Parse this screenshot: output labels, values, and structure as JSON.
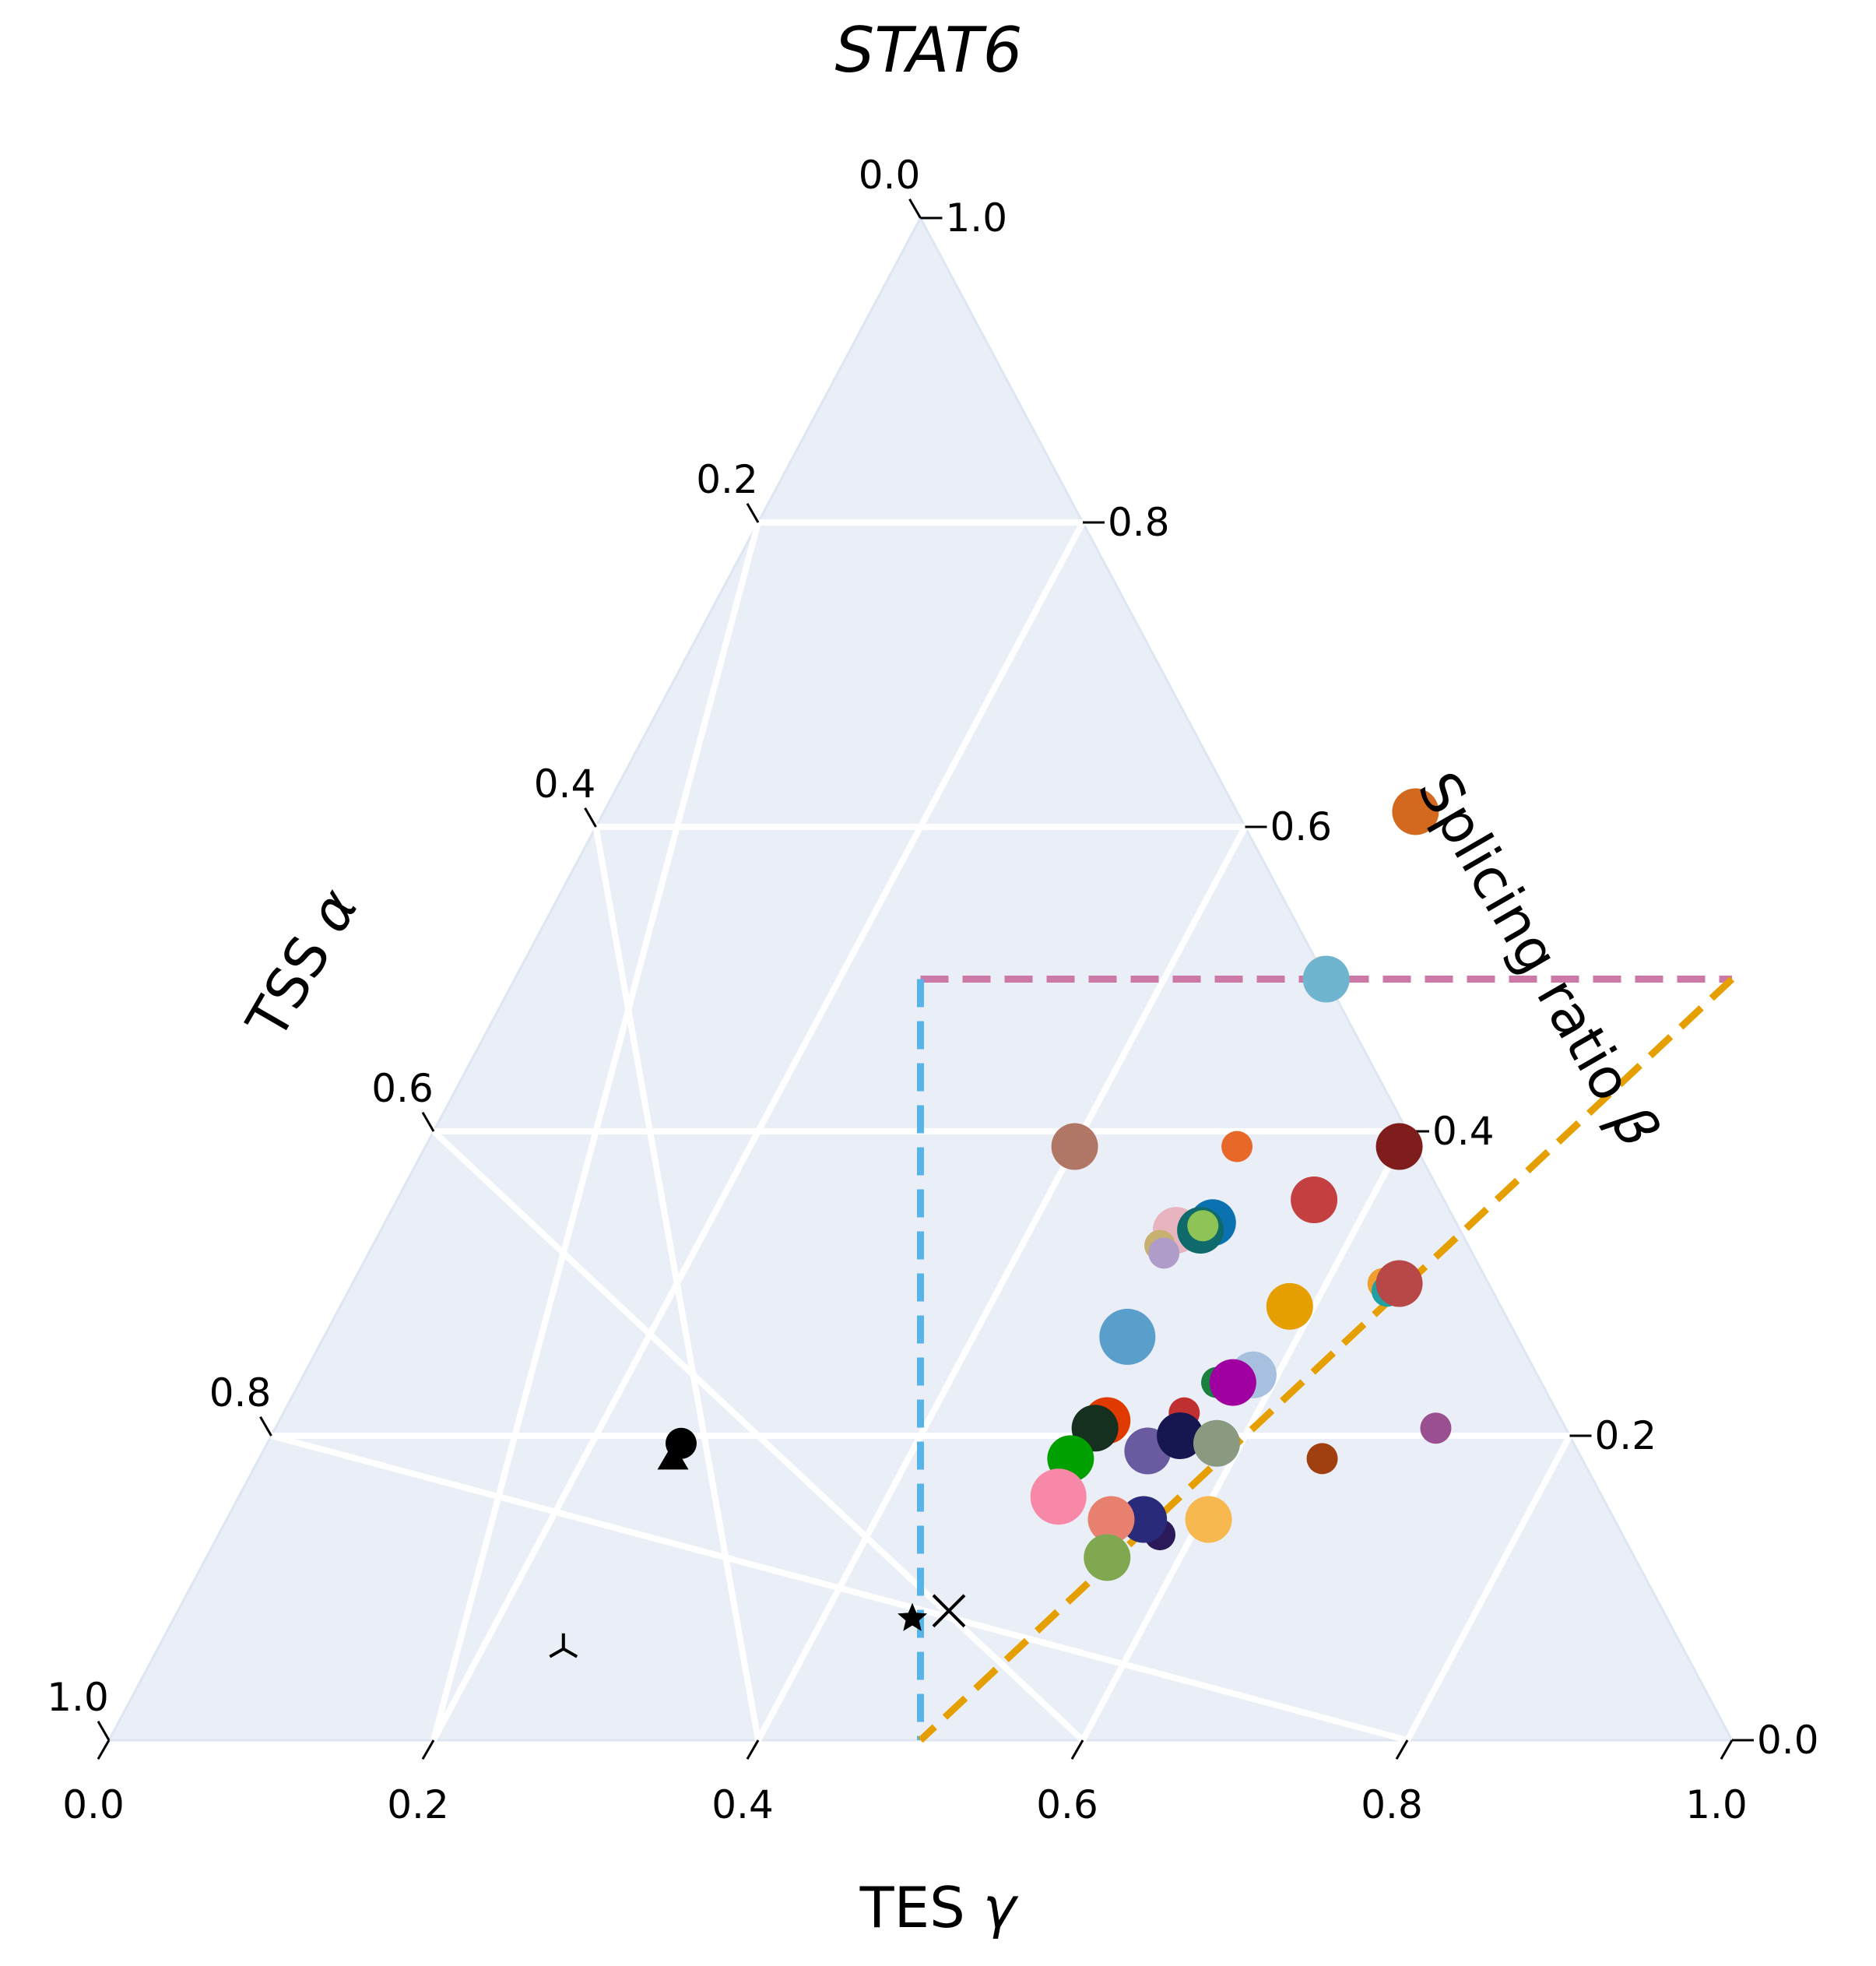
{
  "chart_data": {
    "type": "scatter",
    "subtype": "ternary",
    "title": "STAT6",
    "axes": {
      "bottom": {
        "label": "TES",
        "symbol": "γ",
        "ticks": [
          "0.0",
          "0.2",
          "0.4",
          "0.6",
          "0.8",
          "1.0"
        ]
      },
      "left": {
        "label": "TSS",
        "symbol": "α",
        "ticks": [
          "0.0",
          "0.2",
          "0.4",
          "0.6",
          "0.8",
          "1.0"
        ]
      },
      "right": {
        "label": "Splicing ratio",
        "symbol": "β",
        "ticks": [
          "0.0",
          "0.2",
          "0.4",
          "0.6",
          "0.8",
          "1.0"
        ]
      }
    },
    "grid": true,
    "background_color": "#eaeff7",
    "grid_color": "#ffffff",
    "reference_lines": [
      {
        "name": "beta-threshold",
        "color": "#cc79a7",
        "from": {
          "gamma": 0.25,
          "beta": 0.5
        },
        "to": {
          "gamma": 0.75,
          "beta": 0.5
        }
      },
      {
        "name": "alpha-threshold",
        "color": "#56b4e9",
        "from": {
          "gamma": 0.25,
          "beta": 0.5
        },
        "to": {
          "gamma": 0.5,
          "beta": 0.0
        }
      },
      {
        "name": "gamma-threshold",
        "color": "#e69f00",
        "from": {
          "gamma": 0.75,
          "beta": 0.5
        },
        "to": {
          "gamma": 0.5,
          "beta": 0.0
        }
      }
    ],
    "points": [
      {
        "gamma": 0.255,
        "beta": 0.195,
        "marker": "circle",
        "color": "#000000",
        "size": "small"
      },
      {
        "gamma": 0.255,
        "beta": 0.185,
        "marker": "triangle",
        "color": "#000000",
        "size": "small"
      },
      {
        "gamma": 0.25,
        "beta": 0.06,
        "marker": "tri-down",
        "color": "#000000",
        "size": "small"
      },
      {
        "gamma": 0.455,
        "beta": 0.08,
        "marker": "star",
        "color": "#000000",
        "size": "small"
      },
      {
        "gamma": 0.475,
        "beta": 0.085,
        "marker": "x",
        "color": "#000000",
        "size": "small"
      },
      {
        "gamma": 0.5,
        "beta": 0.61,
        "marker": "circle",
        "color": "#d2691e",
        "size": "medium"
      },
      {
        "gamma": 0.495,
        "beta": 0.505,
        "marker": "circle",
        "color": "#f0e6c8",
        "size": "small"
      },
      {
        "gamma": 0.5,
        "beta": 0.5,
        "marker": "circle",
        "color": "#6fb5d0",
        "size": "medium"
      },
      {
        "gamma": 0.4,
        "beta": 0.39,
        "marker": "circle",
        "color": "#b07766",
        "size": "medium"
      },
      {
        "gamma": 0.5,
        "beta": 0.39,
        "marker": "circle",
        "color": "#e8682a",
        "size": "small"
      },
      {
        "gamma": 0.6,
        "beta": 0.39,
        "marker": "circle",
        "color": "#7f1d1d",
        "size": "medium"
      },
      {
        "gamma": 0.565,
        "beta": 0.355,
        "marker": "circle",
        "color": "#c44040",
        "size": "medium"
      },
      {
        "gamma": 0.49,
        "beta": 0.335,
        "marker": "circle",
        "color": "#e8b4c0",
        "size": "medium"
      },
      {
        "gamma": 0.485,
        "beta": 0.325,
        "marker": "circle",
        "color": "#c8b070",
        "size": "small"
      },
      {
        "gamma": 0.49,
        "beta": 0.32,
        "marker": "circle",
        "color": "#b09cc8",
        "size": "small"
      },
      {
        "gamma": 0.51,
        "beta": 0.34,
        "marker": "circle",
        "color": "#0a72b0",
        "size": "medium"
      },
      {
        "gamma": 0.505,
        "beta": 0.335,
        "marker": "circle",
        "color": "#0f6b6b",
        "size": "medium"
      },
      {
        "gamma": 0.505,
        "beta": 0.338,
        "marker": "circle",
        "color": "#8dc455",
        "size": "small"
      },
      {
        "gamma": 0.635,
        "beta": 0.3,
        "marker": "circle",
        "color": "#f0a030",
        "size": "small"
      },
      {
        "gamma": 0.64,
        "beta": 0.295,
        "marker": "circle",
        "color": "#20a0a0",
        "size": "small"
      },
      {
        "gamma": 0.645,
        "beta": 0.3,
        "marker": "circle",
        "color": "#b84848",
        "size": "medium"
      },
      {
        "gamma": 0.585,
        "beta": 0.285,
        "marker": "circle",
        "color": "#e69f00",
        "size": "medium"
      },
      {
        "gamma": 0.495,
        "beta": 0.265,
        "marker": "circle",
        "color": "#5a9ecb",
        "size": "large"
      },
      {
        "gamma": 0.585,
        "beta": 0.24,
        "marker": "circle",
        "color": "#a8c0e0",
        "size": "medium"
      },
      {
        "gamma": 0.565,
        "beta": 0.235,
        "marker": "circle",
        "color": "#1a8040",
        "size": "small"
      },
      {
        "gamma": 0.575,
        "beta": 0.235,
        "marker": "circle",
        "color": "#a000a0",
        "size": "medium"
      },
      {
        "gamma": 0.555,
        "beta": 0.215,
        "marker": "circle",
        "color": "#c03030",
        "size": "small"
      },
      {
        "gamma": 0.51,
        "beta": 0.21,
        "marker": "circle",
        "color": "#e03a00",
        "size": "medium"
      },
      {
        "gamma": 0.505,
        "beta": 0.205,
        "marker": "circle",
        "color": "#163020",
        "size": "medium"
      },
      {
        "gamma": 0.5,
        "beta": 0.185,
        "marker": "circle",
        "color": "#00a000",
        "size": "medium"
      },
      {
        "gamma": 0.505,
        "beta": 0.16,
        "marker": "circle",
        "color": "#f888a8",
        "size": "large"
      },
      {
        "gamma": 0.545,
        "beta": 0.19,
        "marker": "circle",
        "color": "#6a5aa0",
        "size": "medium"
      },
      {
        "gamma": 0.56,
        "beta": 0.2,
        "marker": "circle",
        "color": "#161650",
        "size": "medium"
      },
      {
        "gamma": 0.585,
        "beta": 0.195,
        "marker": "circle",
        "color": "#8a9a80",
        "size": "medium"
      },
      {
        "gamma": 0.655,
        "beta": 0.185,
        "marker": "circle",
        "color": "#a04010",
        "size": "small"
      },
      {
        "gamma": 0.715,
        "beta": 0.205,
        "marker": "circle",
        "color": "#9a5090",
        "size": "small"
      },
      {
        "gamma": 0.58,
        "beta": 0.135,
        "marker": "circle",
        "color": "#2a1a5a",
        "size": "small"
      },
      {
        "gamma": 0.565,
        "beta": 0.145,
        "marker": "circle",
        "color": "#2a2a7a",
        "size": "medium"
      },
      {
        "gamma": 0.545,
        "beta": 0.145,
        "marker": "circle",
        "color": "#e88070",
        "size": "medium"
      },
      {
        "gamma": 0.605,
        "beta": 0.145,
        "marker": "circle",
        "color": "#f8b850",
        "size": "medium"
      },
      {
        "gamma": 0.555,
        "beta": 0.12,
        "marker": "circle",
        "color": "#80a850",
        "size": "medium"
      }
    ]
  }
}
